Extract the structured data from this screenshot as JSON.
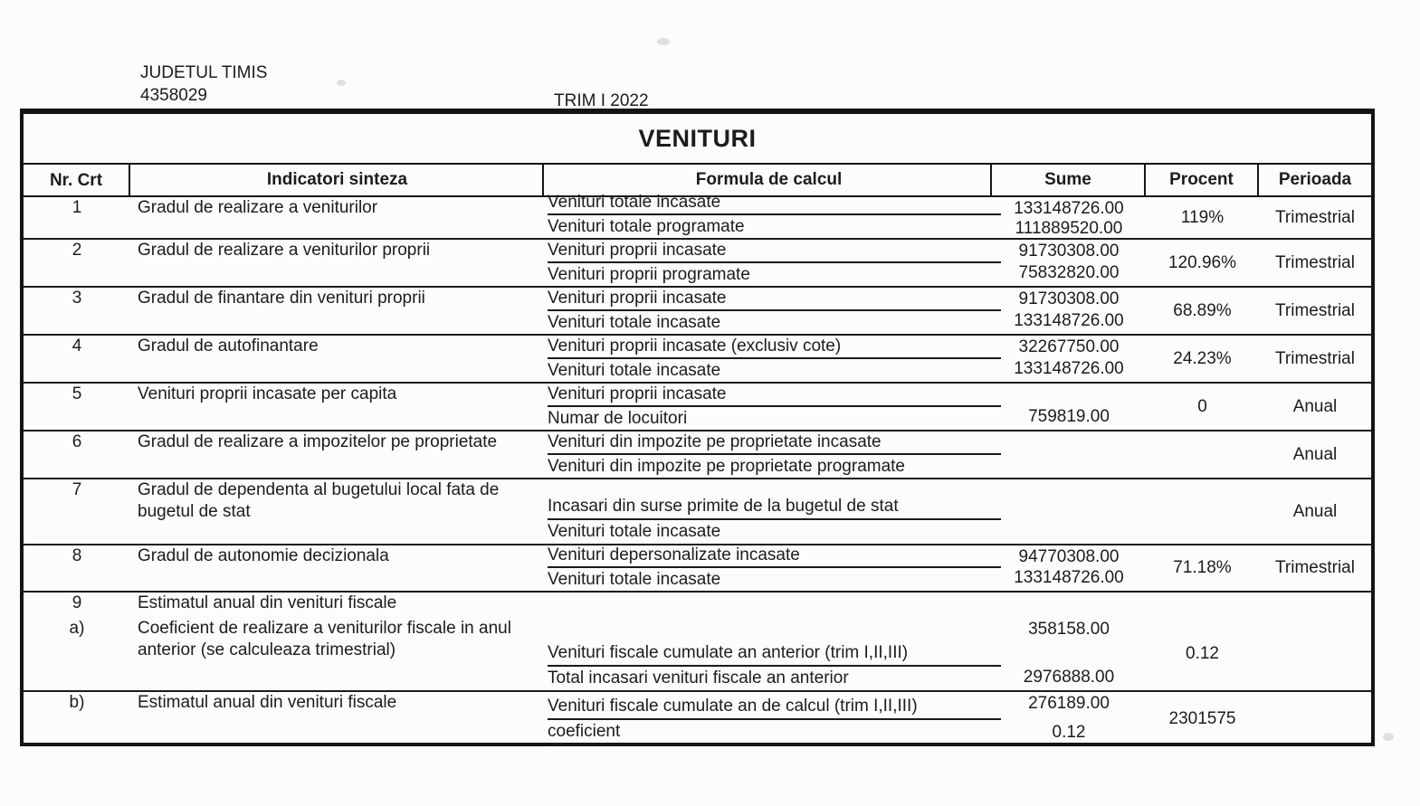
{
  "header": {
    "org_name": "JUDETUL TIMIS",
    "org_code": "4358029",
    "period_label": "TRIM I 2022"
  },
  "table": {
    "title": "VENITURI",
    "columns": [
      "Nr. Crt",
      "Indicatori sinteza",
      "Formula de calcul",
      "Sume",
      "Procent",
      "Perioada"
    ],
    "rows": [
      {
        "nr": "1",
        "indicator": "Gradul de realizare a veniturilor",
        "formula_num": "Venituri totale incasate",
        "formula_den": "Venituri totale programate",
        "sume_num": "133148726.00",
        "sume_den": "111889520.00",
        "procent": "119%",
        "perioada": "Trimestrial"
      },
      {
        "nr": "2",
        "indicator": "Gradul de realizare a veniturilor proprii",
        "formula_num": "Venituri proprii incasate",
        "formula_den": "Venituri proprii programate",
        "sume_num": "91730308.00",
        "sume_den": "75832820.00",
        "procent": "120.96%",
        "perioada": "Trimestrial"
      },
      {
        "nr": "3",
        "indicator": "Gradul de finantare din venituri proprii",
        "formula_num": "Venituri proprii incasate",
        "formula_den": "Venituri totale incasate",
        "sume_num": "91730308.00",
        "sume_den": "133148726.00",
        "procent": "68.89%",
        "perioada": "Trimestrial"
      },
      {
        "nr": "4",
        "indicator": "Gradul de autofinantare",
        "formula_num": "Venituri proprii incasate (exclusiv cote)",
        "formula_den": "Venituri totale incasate",
        "sume_num": "32267750.00",
        "sume_den": "133148726.00",
        "procent": "24.23%",
        "perioada": "Trimestrial"
      },
      {
        "nr": "5",
        "indicator": "Venituri proprii incasate per capita",
        "formula_num": "Venituri proprii incasate",
        "formula_den": "Numar de locuitori",
        "sume_num": "",
        "sume_den": "759819.00",
        "procent": "0",
        "perioada": "Anual"
      },
      {
        "nr": "6",
        "indicator": "Gradul de realizare a impozitelor pe proprietate",
        "formula_num": "Venituri din impozite pe proprietate incasate",
        "formula_den": "Venituri din impozite pe proprietate programate",
        "sume_num": "",
        "sume_den": "",
        "procent": "",
        "perioada": "Anual"
      },
      {
        "nr": "7",
        "indicator": "Gradul de dependenta al bugetului local fata de bugetul de stat",
        "formula_num": "Incasari din surse primite de la bugetul de stat",
        "formula_den": "Venituri totale incasate",
        "sume_num": "",
        "sume_den": "",
        "procent": "",
        "perioada": "Anual"
      },
      {
        "nr": "8",
        "indicator": "Gradul de autonomie decizionala",
        "formula_num": "Venituri depersonalizate incasate",
        "formula_den": "Venituri totale incasate",
        "sume_num": "94770308.00",
        "sume_den": "133148726.00",
        "procent": "71.18%",
        "perioada": "Trimestrial"
      },
      {
        "nr": "9",
        "indicator": "Estimatul anual din venituri fiscale",
        "formula_num": "",
        "formula_den": "",
        "sume_num": "",
        "sume_den": "",
        "procent": "",
        "perioada": ""
      },
      {
        "nr": "a)",
        "indicator": "Coeficient de realizare a veniturilor fiscale in anul anterior (se calculeaza trimestrial)",
        "formula_num": "Venituri fiscale cumulate an anterior (trim I,II,III)",
        "formula_den": "Total incasari venituri fiscale an anterior",
        "sume_num": "358158.00",
        "sume_den": "2976888.00",
        "procent": "0.12",
        "perioada": ""
      },
      {
        "nr": "b)",
        "indicator": "Estimatul anual din venituri fiscale",
        "formula_num": "Venituri fiscale cumulate an de calcul (trim I,II,III)",
        "formula_den": "coeficient",
        "sume_num": "276189.00",
        "sume_den": "0.12",
        "procent": "2301575",
        "perioada": ""
      }
    ]
  }
}
